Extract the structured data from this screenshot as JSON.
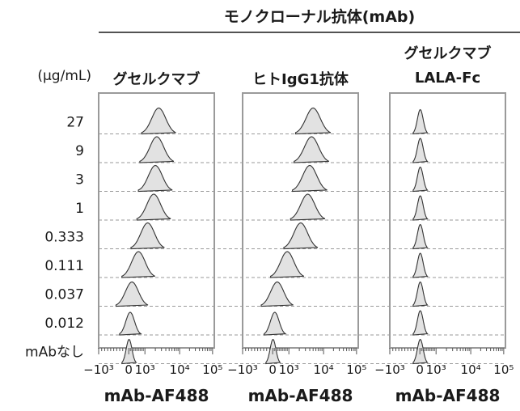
{
  "group_header": "モノクローナル抗体(mAb)",
  "row_unit_label": "(µg/mL)",
  "rows": [
    "27",
    "9",
    "3",
    "1",
    "0.333",
    "0.111",
    "0.037",
    "0.012",
    "mAbなし"
  ],
  "panels": [
    {
      "title_lines": [
        "グセルクマブ"
      ]
    },
    {
      "title_lines": [
        "ヒトIgG1抗体"
      ]
    },
    {
      "title_lines": [
        "グセルクマブ",
        "LALA-Fc"
      ]
    }
  ],
  "x_tick_labels": [
    "−10³",
    "0",
    "10³",
    "10⁴",
    "10⁵"
  ],
  "x_label": "mAb-AF488",
  "colors": {
    "fill": "#e2e2e2",
    "stroke": "#333333",
    "frame": "#9a9a9a",
    "text": "#1a1a1a"
  },
  "chart_data": {
    "type": "histogram-ridgeline",
    "x_scale": "biexponential",
    "x_ticks": [
      -1000,
      0,
      1000,
      10000,
      100000
    ],
    "x_range": [
      -1000,
      100000
    ],
    "series": [
      {
        "name": "グセルクマブ",
        "peak_mfi": [
          2500,
          2200,
          2000,
          1800,
          1200,
          600,
          200,
          90,
          20
        ]
      },
      {
        "name": "ヒトIgG1抗体",
        "peak_mfi": [
          5000,
          4500,
          4000,
          3500,
          2200,
          900,
          280,
          130,
          20
        ]
      },
      {
        "name": "グセルクマブ LALA-Fc",
        "peak_mfi": [
          25,
          25,
          25,
          25,
          25,
          25,
          25,
          25,
          25
        ]
      }
    ]
  }
}
